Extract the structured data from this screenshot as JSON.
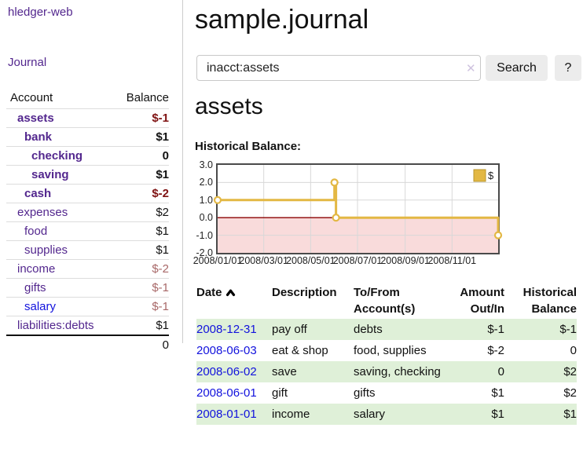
{
  "sidebar": {
    "app_title": "hledger-web",
    "journal_label": "Journal",
    "accounts_table": {
      "headers": {
        "account": "Account",
        "balance": "Balance"
      },
      "rows": [
        {
          "name": "assets",
          "depth": 1,
          "bold": true,
          "name_color": "purple",
          "balance": "$-1",
          "balance_style": "negative-strong"
        },
        {
          "name": "bank",
          "depth": 2,
          "bold": true,
          "name_color": "purple",
          "balance": "$1",
          "balance_style": "normal"
        },
        {
          "name": "checking",
          "depth": 3,
          "bold": true,
          "name_color": "purple",
          "balance": "0",
          "balance_style": "normal"
        },
        {
          "name": "saving",
          "depth": 3,
          "bold": true,
          "name_color": "purple",
          "balance": "$1",
          "balance_style": "normal"
        },
        {
          "name": "cash",
          "depth": 2,
          "bold": true,
          "name_color": "purple",
          "balance": "$-2",
          "balance_style": "negative-strong"
        },
        {
          "name": "expenses",
          "depth": 1,
          "bold": false,
          "name_color": "purple",
          "balance": "$2",
          "balance_style": "normal"
        },
        {
          "name": "food",
          "depth": 2,
          "bold": false,
          "name_color": "purple",
          "balance": "$1",
          "balance_style": "normal"
        },
        {
          "name": "supplies",
          "depth": 2,
          "bold": false,
          "name_color": "purple",
          "balance": "$1",
          "balance_style": "normal"
        },
        {
          "name": "income",
          "depth": 1,
          "bold": false,
          "name_color": "purple",
          "balance": "$-2",
          "balance_style": "negative-soft"
        },
        {
          "name": "gifts",
          "depth": 2,
          "bold": false,
          "name_color": "purple",
          "balance": "$-1",
          "balance_style": "negative-soft"
        },
        {
          "name": "salary",
          "depth": 2,
          "bold": false,
          "name_color": "blue",
          "balance": "$-1",
          "balance_style": "negative-soft"
        },
        {
          "name": "liabilities:debts",
          "depth": 1,
          "bold": false,
          "name_color": "purple",
          "balance": "$1",
          "balance_style": "normal"
        }
      ],
      "total": "0"
    }
  },
  "header": {
    "title": "sample.journal"
  },
  "search": {
    "value": "inacct:assets",
    "clear_icon": "✕",
    "button_label": "Search",
    "help_label": "?"
  },
  "account_page": {
    "title": "assets",
    "chart_label": "Historical Balance:"
  },
  "chart_data": {
    "type": "line",
    "title": "Historical Balance:",
    "step": true,
    "x_range": [
      "2008-01-01",
      "2008-12-31"
    ],
    "y_range": [
      -2.0,
      3.0
    ],
    "y_ticks": [
      3.0,
      2.0,
      1.0,
      0.0,
      -1.0,
      -2.0
    ],
    "y_tick_labels": [
      "3.0",
      "2.0",
      "1.0",
      "0.0",
      "-1.0",
      "-2.0"
    ],
    "x_ticks": [
      "2008/01/01",
      "2008/03/01",
      "2008/05/01",
      "2008/07/01",
      "2008/09/01",
      "2008/11/01"
    ],
    "grid": true,
    "legend": {
      "label": "$",
      "position": "top-right"
    },
    "series": [
      {
        "name": "$",
        "color": "#e3b844",
        "points": [
          {
            "date": "2008-01-01",
            "value": 1.0
          },
          {
            "date": "2008-06-01",
            "value": 2.0
          },
          {
            "date": "2008-06-03",
            "value": 0.0
          },
          {
            "date": "2008-12-31",
            "value": -1.0
          }
        ]
      }
    ],
    "negative_region_color": "#f9dbdb",
    "zero_line_color": "#8b0000",
    "grid_color": "#d8d8d8",
    "border_color": "#4a4a4a"
  },
  "register_table": {
    "headers": {
      "date": "Date",
      "description": "Description",
      "accounts": "To/From Account(s)",
      "amount": "Amount Out/In",
      "balance": "Historical Balance"
    },
    "sort": {
      "column": "date",
      "direction": "ascending"
    },
    "rows": [
      {
        "date": "2008-12-31",
        "description": "pay off",
        "accounts": "debts",
        "amount": "$-1",
        "amount_negative": true,
        "balance": "$-1",
        "balance_negative": true
      },
      {
        "date": "2008-06-03",
        "description": "eat & shop",
        "accounts": "food, supplies",
        "amount": "$-2",
        "amount_negative": true,
        "balance": "0",
        "balance_negative": false
      },
      {
        "date": "2008-06-02",
        "description": "save",
        "accounts": "saving, checking",
        "amount": "0",
        "amount_negative": false,
        "balance": "$2",
        "balance_negative": false
      },
      {
        "date": "2008-06-01",
        "description": "gift",
        "accounts": "gifts",
        "amount": "$1",
        "amount_negative": false,
        "balance": "$2",
        "balance_negative": false
      },
      {
        "date": "2008-01-01",
        "description": "income",
        "accounts": "salary",
        "amount": "$1",
        "amount_negative": false,
        "balance": "$1",
        "balance_negative": false
      }
    ]
  },
  "icons": {
    "clear_search": "x-cross",
    "sort_ascending": "chevron-up"
  },
  "colors": {
    "link_purple": "#53278e",
    "link_blue": "#1212dd",
    "negative_strong": "#7f1212",
    "negative_soft": "#a86868",
    "negative_table": "#8b1a1a",
    "row_green": "#dff0d8",
    "chart_line": "#e3b844",
    "chart_negative_fill": "#f9dbdb",
    "chart_zero_line": "#8b0000",
    "button_bg": "#ececec"
  }
}
